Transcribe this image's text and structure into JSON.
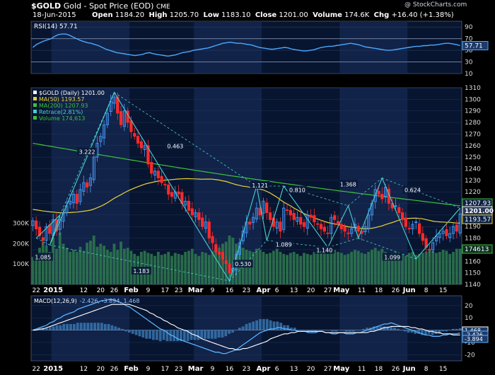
{
  "header": {
    "symbol": "$GOLD",
    "name": "Gold - Spot Price (EOD)",
    "exchange": "CME",
    "date": "18-Jun-2015",
    "open_label": "Open",
    "open": "1184.20",
    "high_label": "High",
    "high": "1205.70",
    "low_label": "Low",
    "low": "1183.10",
    "close_label": "Close",
    "close": "1201.00",
    "volume_label": "Volume",
    "volume": "174.6K",
    "chg_label": "Chg",
    "chg": "+16.40 (+1.38%)",
    "watermark": "@ StockCharts.com"
  },
  "colors": {
    "background": "#000000",
    "panel": "#081530",
    "shade": "#142850",
    "up": "#4a9eff",
    "down": "#ff2a2a",
    "ma50": "#e8d23a",
    "ma200": "#3cc23c",
    "retrace": "#49d0d0",
    "volume": "#2f7a4f",
    "rsi": "#4aa8ff",
    "macd": "#5ab4ff",
    "signal": "#ffffff",
    "hist": "#3a7ab8"
  },
  "chart_data": [
    {
      "type": "line",
      "panel": "rsi",
      "legend": "RSI(14) 57.71",
      "ylim": [
        10,
        100
      ],
      "yticks": [
        10,
        30,
        50,
        70,
        90
      ],
      "last_value_label": "57.71",
      "values": [
        55,
        60,
        63,
        66,
        68,
        70,
        74,
        77,
        78,
        78,
        76,
        73,
        70,
        67,
        65,
        63,
        62,
        60,
        58,
        55,
        52,
        50,
        48,
        46,
        45,
        44,
        43,
        42,
        41,
        42,
        43,
        45,
        46,
        44,
        43,
        42,
        41,
        40,
        41,
        42,
        44,
        46,
        47,
        48,
        50,
        51,
        52,
        53,
        54,
        56,
        58,
        60,
        62,
        63,
        64,
        63,
        62,
        62,
        61,
        60,
        59,
        57,
        55,
        54,
        53,
        52,
        52,
        53,
        54,
        55,
        54,
        52,
        51,
        50,
        49,
        49,
        50,
        51,
        53,
        55,
        56,
        57,
        57,
        58,
        59,
        60,
        61,
        62,
        61,
        60,
        58,
        56,
        55,
        54,
        53,
        52,
        51,
        50,
        50,
        51,
        52,
        53,
        54,
        55,
        56,
        57,
        57,
        58,
        58,
        59,
        59,
        60,
        61,
        62,
        62,
        61,
        60,
        58
      ]
    },
    {
      "type": "candlestick",
      "panel": "price",
      "ylim": [
        1140,
        1310
      ],
      "yticks": [
        1140,
        1150,
        1160,
        1170,
        1180,
        1190,
        1200,
        1210,
        1220,
        1230,
        1240,
        1250,
        1260,
        1270,
        1280,
        1290,
        1300,
        1310
      ],
      "x_ticks": [
        {
          "label": "22",
          "i": 1
        },
        {
          "label": "2015",
          "i": 6
        },
        {
          "label": "12",
          "i": 15
        },
        {
          "label": "20",
          "i": 20
        },
        {
          "label": "26",
          "i": 24
        },
        {
          "label": "Feb",
          "i": 29
        },
        {
          "label": "9",
          "i": 34
        },
        {
          "label": "17",
          "i": 39
        },
        {
          "label": "23",
          "i": 43
        },
        {
          "label": "Mar",
          "i": 48
        },
        {
          "label": "9",
          "i": 53
        },
        {
          "label": "16",
          "i": 58
        },
        {
          "label": "23",
          "i": 63
        },
        {
          "label": "Apr",
          "i": 68
        },
        {
          "label": "6",
          "i": 72
        },
        {
          "label": "13",
          "i": 77
        },
        {
          "label": "20",
          "i": 82
        },
        {
          "label": "27",
          "i": 87
        },
        {
          "label": "May",
          "i": 91
        },
        {
          "label": "11",
          "i": 97
        },
        {
          "label": "18",
          "i": 102
        },
        {
          "label": "26",
          "i": 107
        },
        {
          "label": "Jun",
          "i": 111
        },
        {
          "label": "8",
          "i": 116
        },
        {
          "label": "15",
          "i": 121
        }
      ],
      "legend": [
        {
          "text": "$GOLD (Daily) 1201.00",
          "color": "#ffffff"
        },
        {
          "text": "MA(50) 1193.57",
          "color": "#e8d23a"
        },
        {
          "text": "MA(200) 1207.93",
          "color": "#3cc23c"
        },
        {
          "text": "Retrace(2.81%)",
          "color": "#49d0d0"
        },
        {
          "text": "Volume 174,613",
          "color": "#3cc23c"
        }
      ],
      "last_values": [
        {
          "label": "1207.93",
          "value": 1207.93,
          "color": "#3cc23c"
        },
        {
          "label": "1201.00",
          "value": 1201.0,
          "color": "#ffffff"
        },
        {
          "label": "1193.57",
          "value": 1193.57,
          "color": "#e8d23a"
        }
      ],
      "close": [
        1195,
        1188,
        1182,
        1178,
        1190,
        1184,
        1196,
        1186,
        1196,
        1202,
        1208,
        1212,
        1218,
        1210,
        1222,
        1228,
        1224,
        1232,
        1250,
        1262,
        1268,
        1278,
        1288,
        1298,
        1302,
        1288,
        1278,
        1290,
        1280,
        1272,
        1268,
        1262,
        1258,
        1260,
        1244,
        1236,
        1238,
        1232,
        1228,
        1226,
        1218,
        1216,
        1220,
        1218,
        1210,
        1212,
        1204,
        1200,
        1202,
        1196,
        1190,
        1194,
        1180,
        1176,
        1168,
        1166,
        1162,
        1158,
        1150,
        1154,
        1166,
        1176,
        1186,
        1194,
        1192,
        1198,
        1206,
        1200,
        1212,
        1202,
        1196,
        1190,
        1194,
        1186,
        1206,
        1204,
        1200,
        1196,
        1198,
        1192,
        1190,
        1200,
        1198,
        1194,
        1192,
        1188,
        1186,
        1184,
        1198,
        1196,
        1192,
        1188,
        1186,
        1184,
        1188,
        1192,
        1186,
        1184,
        1190,
        1200,
        1210,
        1222,
        1218,
        1214,
        1224,
        1210,
        1206,
        1208,
        1202,
        1196,
        1190,
        1188,
        1192,
        1194,
        1184,
        1178,
        1172,
        1170,
        1176,
        1182,
        1184,
        1186,
        1182,
        1184,
        1190,
        1186,
        1201
      ],
      "volume": [
        135,
        150,
        180,
        210,
        190,
        160,
        230,
        175,
        255,
        200,
        180,
        160,
        170,
        160,
        185,
        165,
        205,
        215,
        240,
        185,
        200,
        190,
        170,
        160,
        200,
        170,
        210,
        175,
        180,
        165,
        150,
        140,
        160,
        165,
        155,
        150,
        140,
        160,
        145,
        150,
        160,
        140,
        155,
        150,
        145,
        160,
        165,
        175,
        150,
        140,
        160,
        155,
        145,
        165,
        175,
        180,
        200,
        210,
        240,
        230,
        200,
        190,
        180,
        170,
        165,
        160,
        175,
        170,
        160,
        150,
        155,
        165,
        175,
        160,
        150,
        145,
        155,
        160,
        150,
        140,
        155,
        150,
        145,
        160,
        170,
        165,
        155,
        150,
        175,
        170,
        160,
        155,
        145,
        150,
        160,
        170,
        165,
        155,
        150,
        160,
        170,
        180,
        165,
        175,
        160,
        150,
        155,
        160,
        145,
        150,
        140,
        155,
        160,
        145,
        150,
        155,
        160,
        170,
        165,
        155,
        160,
        170,
        165,
        150,
        160,
        175,
        175
      ],
      "vol_ticks": [
        {
          "label": "300K",
          "value": 300
        },
        {
          "label": "200K",
          "value": 200
        },
        {
          "label": "100K",
          "value": 100
        }
      ],
      "retrace_points": [
        {
          "i": 1,
          "v": 1180
        },
        {
          "i": 8,
          "v": 1200
        },
        {
          "i": 5,
          "v": 1174
        },
        {
          "i": 24,
          "v": 1306
        },
        {
          "i": 58,
          "v": 1143
        },
        {
          "i": 66,
          "v": 1225
        },
        {
          "i": 69,
          "v": 1178
        },
        {
          "i": 74,
          "v": 1225
        },
        {
          "i": 87,
          "v": 1172
        },
        {
          "i": 93,
          "v": 1208
        },
        {
          "i": 96,
          "v": 1180
        },
        {
          "i": 103,
          "v": 1232
        },
        {
          "i": 113,
          "v": 1162
        },
        {
          "i": 126,
          "v": 1206
        }
      ],
      "retrace_labels": [
        {
          "text": "1.085",
          "i": 3,
          "v": 1163
        },
        {
          "text": "3.222",
          "i": 16,
          "v": 1254
        },
        {
          "text": "0.463",
          "i": 42,
          "v": 1259
        },
        {
          "text": "1.183",
          "i": 32,
          "v": 1151
        },
        {
          "text": "0.530",
          "i": 62,
          "v": 1157
        },
        {
          "text": "1.121",
          "i": 67,
          "v": 1225
        },
        {
          "text": "0.810",
          "i": 78,
          "v": 1221
        },
        {
          "text": "1.089",
          "i": 74,
          "v": 1174
        },
        {
          "text": "1.368",
          "i": 93,
          "v": 1226
        },
        {
          "text": "1.140",
          "i": 86,
          "v": 1169
        },
        {
          "text": "1.099",
          "i": 106,
          "v": 1163
        },
        {
          "text": "0.624",
          "i": 112,
          "v": 1221
        }
      ]
    },
    {
      "type": "line",
      "panel": "macd",
      "legend_name": "MACD(12,26,9)",
      "legend_values": "-2.426, -3.894, 1.468",
      "ylim": [
        -25,
        28
      ],
      "yticks": [
        -20,
        -10,
        0,
        10,
        20
      ],
      "last_value_labels": [
        "1.468",
        "-2.426",
        "-3.894"
      ],
      "macd": [
        0,
        1,
        2,
        3,
        4,
        6,
        7,
        9,
        10,
        12,
        13,
        14,
        15,
        17,
        18,
        19,
        20,
        21,
        22,
        23,
        24,
        24,
        25,
        25,
        24,
        23,
        22,
        20,
        19,
        17,
        15,
        13,
        11,
        9,
        7,
        5,
        3,
        1,
        0,
        -2,
        -4,
        -5,
        -7,
        -8,
        -9,
        -10,
        -11,
        -12,
        -13,
        -14,
        -15,
        -16,
        -17,
        -18,
        -18,
        -19,
        -19,
        -18,
        -17,
        -16,
        -14,
        -12,
        -10,
        -8,
        -6,
        -4,
        -2,
        -1,
        0,
        1,
        1,
        2,
        2,
        1,
        1,
        0,
        0,
        -1,
        -1,
        -1,
        -2,
        -2,
        -2,
        -1,
        -1,
        -2,
        -2,
        -3,
        -3,
        -2,
        -2,
        -3,
        -3,
        -3,
        -2,
        -2,
        -1,
        0,
        1,
        2,
        3,
        4,
        5,
        5,
        6,
        5,
        4,
        3,
        2,
        1,
        0,
        -1,
        -2,
        -3,
        -4,
        -4,
        -5,
        -5,
        -5,
        -4,
        -4,
        -3,
        -3,
        -3,
        -2.4
      ],
      "signal": [
        0,
        0,
        1,
        1,
        2,
        3,
        4,
        5,
        6,
        7,
        8,
        9,
        10,
        11,
        12,
        13,
        14,
        15,
        16,
        17,
        18,
        19,
        20,
        21,
        21,
        21,
        21,
        21,
        21,
        20,
        19,
        18,
        17,
        16,
        14,
        13,
        11,
        10,
        8,
        7,
        5,
        4,
        2,
        1,
        0,
        -1,
        -3,
        -4,
        -5,
        -7,
        -8,
        -9,
        -10,
        -11,
        -12,
        -13,
        -14,
        -15,
        -15,
        -16,
        -16,
        -15,
        -15,
        -14,
        -13,
        -12,
        -11,
        -10,
        -9,
        -7,
        -6,
        -5,
        -4,
        -3,
        -3,
        -2,
        -2,
        -1,
        -1,
        -1,
        -1,
        -1,
        -1,
        -1,
        -1,
        -2,
        -2,
        -2,
        -2,
        -2,
        -2,
        -2,
        -2,
        -2,
        -2,
        -2,
        -2,
        -2,
        -1,
        -1,
        0,
        1,
        2,
        2,
        3,
        3,
        3,
        3,
        3,
        3,
        2,
        2,
        1,
        1,
        0,
        -1,
        -1,
        -2,
        -2,
        -3,
        -3,
        -3,
        -4,
        -4,
        -3.9
      ]
    }
  ]
}
